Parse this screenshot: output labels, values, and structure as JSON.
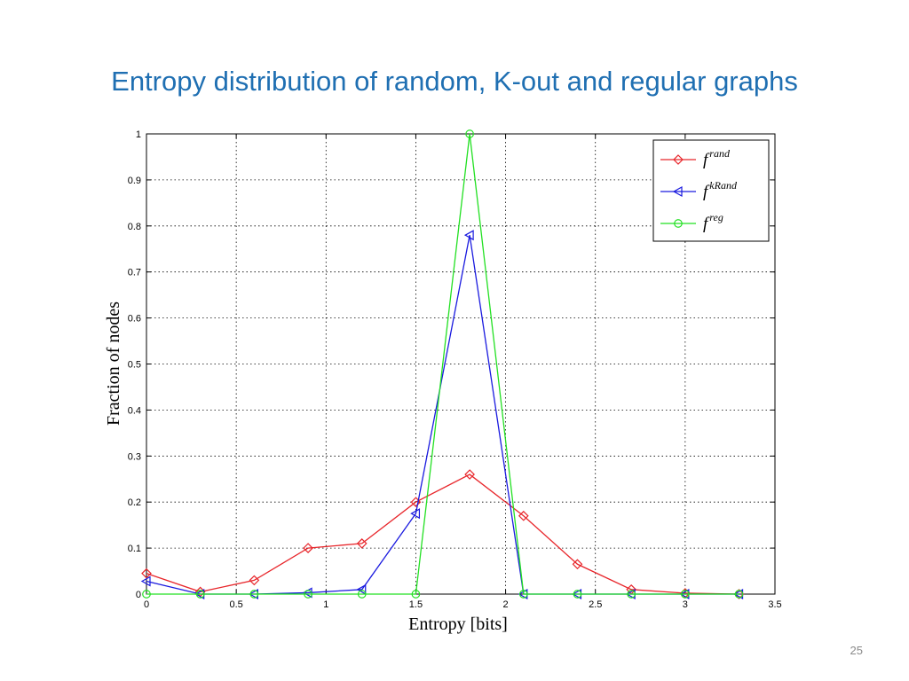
{
  "slide": {
    "title": "Entropy distribution of random, K-out and regular graphs",
    "page_number": "25"
  },
  "chart_data": {
    "type": "line",
    "title": "",
    "xlabel": "Entropy [bits]",
    "ylabel": "Fraction of nodes",
    "xlim": [
      0,
      3.5
    ],
    "ylim": [
      0,
      1
    ],
    "x_ticks": [
      "0",
      "0.5",
      "1",
      "1.5",
      "2",
      "2.5",
      "3",
      "3.5"
    ],
    "y_ticks": [
      "0",
      "0.1",
      "0.2",
      "0.3",
      "0.4",
      "0.5",
      "0.6",
      "0.7",
      "0.8",
      "0.9",
      "1"
    ],
    "grid": true,
    "grid_style": "dotted",
    "legend_position": "top-right",
    "series": [
      {
        "base": "f",
        "sup": "rand",
        "color": "#e8262b",
        "marker": "diamond",
        "x": [
          0,
          0.3,
          0.6,
          0.9,
          1.2,
          1.5,
          1.8,
          2.1,
          2.4,
          2.7,
          3.0,
          3.3
        ],
        "y": [
          0.045,
          0.005,
          0.03,
          0.1,
          0.11,
          0.2,
          0.26,
          0.17,
          0.065,
          0.01,
          0.002,
          0.0
        ]
      },
      {
        "base": "f",
        "sup": "kRand",
        "color": "#1a1adf",
        "marker": "triangle-left",
        "x": [
          0,
          0.3,
          0.6,
          0.9,
          1.2,
          1.5,
          1.8,
          2.1,
          2.4,
          2.7,
          3.0,
          3.3
        ],
        "y": [
          0.028,
          0.0,
          0.0,
          0.003,
          0.01,
          0.175,
          0.78,
          0.0,
          0.0,
          0.0,
          0.0,
          0.0
        ]
      },
      {
        "base": "f",
        "sup": "reg",
        "color": "#22e022",
        "marker": "circle",
        "x": [
          0,
          0.3,
          0.6,
          0.9,
          1.2,
          1.5,
          1.8,
          2.1,
          2.4,
          2.7,
          3.0,
          3.3
        ],
        "y": [
          0.0,
          0.0,
          0.0,
          0.0,
          0.0,
          0.0,
          1.0,
          0.0,
          0.0,
          0.0,
          0.0,
          0.0
        ]
      }
    ]
  }
}
